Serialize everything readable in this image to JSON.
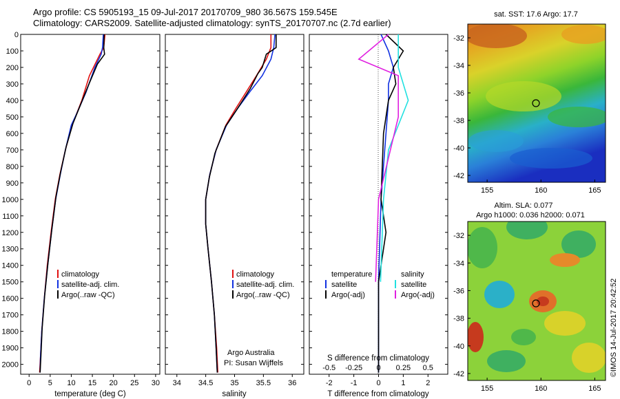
{
  "header": {
    "title_line1": "Argo profile: CS 5905193_15 09-Jul-2017 20170709_980 36.567S 159.545E",
    "title_line2": "Climatology: CARS2009. Satellite-adjusted climatology: synTS_20170707.nc (2.7d earlier)"
  },
  "colors": {
    "climatology": "#e01010",
    "satellite": "#1030e0",
    "argo": "#000000",
    "satellite_salinity": "#20e0e0",
    "argo_salinity_adj": "#e020e0"
  },
  "chart_data": [
    {
      "type": "line",
      "panel": "temperature",
      "xlabel": "temperature (deg C)",
      "ylabel": "",
      "xlim": [
        -2,
        31
      ],
      "ylim": [
        2060,
        0
      ],
      "xticks": [
        "0",
        "5",
        "10",
        "15",
        "20",
        "25",
        "30"
      ],
      "yticks": [
        "0",
        "100",
        "200",
        "300",
        "400",
        "500",
        "600",
        "700",
        "800",
        "900",
        "1000",
        "1100",
        "1200",
        "1300",
        "1400",
        "1500",
        "1600",
        "1700",
        "1800",
        "1900",
        "2000"
      ],
      "legend": [
        "climatology",
        "satellite-adj. clim.",
        "Argo(..raw -QC)"
      ],
      "series": [
        {
          "name": "climatology",
          "values": [
            [
              18.0,
              0
            ],
            [
              17.7,
              80
            ],
            [
              16.8,
              120
            ],
            [
              14.3,
              250
            ],
            [
              12.5,
              400
            ],
            [
              10.2,
              550
            ],
            [
              8.6,
              700
            ],
            [
              7.3,
              850
            ],
            [
              6.2,
              1000
            ],
            [
              5.2,
              1200
            ],
            [
              4.3,
              1400
            ],
            [
              3.6,
              1600
            ],
            [
              3.0,
              1800
            ],
            [
              2.7,
              1950
            ],
            [
              2.5,
              2050
            ]
          ]
        },
        {
          "name": "satellite-adj. clim.",
          "values": [
            [
              17.6,
              0
            ],
            [
              17.4,
              80
            ],
            [
              17.1,
              120
            ],
            [
              15.6,
              200
            ],
            [
              13.5,
              350
            ],
            [
              11.3,
              480
            ],
            [
              10.0,
              550
            ],
            [
              8.6,
              700
            ],
            [
              7.4,
              850
            ],
            [
              6.3,
              1000
            ],
            [
              5.3,
              1200
            ],
            [
              4.4,
              1400
            ],
            [
              3.6,
              1600
            ],
            [
              3.0,
              1800
            ],
            [
              2.7,
              1950
            ],
            [
              2.6,
              2050
            ]
          ]
        },
        {
          "name": "Argo(..raw -QC)",
          "values": [
            [
              17.8,
              0
            ],
            [
              17.7,
              80
            ],
            [
              17.9,
              120
            ],
            [
              16.2,
              180
            ],
            [
              14.2,
              300
            ],
            [
              12.3,
              420
            ],
            [
              10.4,
              540
            ],
            [
              8.8,
              680
            ],
            [
              7.5,
              830
            ],
            [
              6.4,
              980
            ],
            [
              5.4,
              1180
            ],
            [
              4.5,
              1380
            ],
            [
              3.7,
              1580
            ],
            [
              3.1,
              1780
            ],
            [
              2.8,
              1950
            ],
            [
              2.6,
              2050
            ]
          ]
        }
      ]
    },
    {
      "type": "line",
      "panel": "salinity",
      "xlabel": "salinity",
      "xlim": [
        33.8,
        36.2
      ],
      "ylim": [
        2060,
        0
      ],
      "xticks": [
        "34",
        "34.5",
        "35",
        "35.5",
        "36"
      ],
      "legend": [
        "climatology",
        "satellite-adj. clim.",
        "Argo(..raw -QC)"
      ],
      "annotation": [
        "Argo Australia",
        "PI: Susan Wijffels"
      ],
      "series": [
        {
          "name": "climatology",
          "values": [
            [
              35.63,
              0
            ],
            [
              35.63,
              80
            ],
            [
              35.55,
              150
            ],
            [
              35.38,
              250
            ],
            [
              35.2,
              350
            ],
            [
              35.02,
              450
            ],
            [
              34.85,
              550
            ],
            [
              34.68,
              700
            ],
            [
              34.57,
              850
            ],
            [
              34.5,
              1000
            ],
            [
              34.5,
              1150
            ],
            [
              34.54,
              1300
            ],
            [
              34.6,
              1500
            ],
            [
              34.65,
              1700
            ],
            [
              34.69,
              1900
            ],
            [
              34.71,
              2050
            ]
          ]
        },
        {
          "name": "satellite-adj. clim.",
          "values": [
            [
              35.7,
              0
            ],
            [
              35.68,
              80
            ],
            [
              35.63,
              150
            ],
            [
              35.48,
              250
            ],
            [
              35.26,
              350
            ],
            [
              35.05,
              450
            ],
            [
              34.86,
              550
            ],
            [
              34.68,
              700
            ],
            [
              34.57,
              850
            ],
            [
              34.5,
              1000
            ],
            [
              34.5,
              1150
            ],
            [
              34.54,
              1300
            ],
            [
              34.6,
              1500
            ],
            [
              34.65,
              1700
            ],
            [
              34.68,
              1900
            ],
            [
              34.7,
              2050
            ]
          ]
        },
        {
          "name": "Argo(..raw -QC)",
          "values": [
            [
              35.72,
              0
            ],
            [
              35.72,
              80
            ],
            [
              35.55,
              120
            ],
            [
              35.48,
              200
            ],
            [
              35.4,
              240
            ],
            [
              35.27,
              330
            ],
            [
              35.05,
              450
            ],
            [
              34.84,
              560
            ],
            [
              34.66,
              720
            ],
            [
              34.56,
              870
            ],
            [
              34.5,
              1000
            ],
            [
              34.5,
              1150
            ],
            [
              34.54,
              1300
            ],
            [
              34.6,
              1500
            ],
            [
              34.65,
              1700
            ],
            [
              34.68,
              1900
            ],
            [
              34.7,
              2050
            ]
          ]
        }
      ]
    },
    {
      "type": "line",
      "panel": "difference",
      "xlabel": "T difference from climatology",
      "xlabel_top": "S difference from climatology",
      "xlim": [
        -2.8,
        2.8
      ],
      "ylim": [
        2060,
        0
      ],
      "xticks": [
        "-2",
        "-1",
        "0",
        "1",
        "2"
      ],
      "xticks_salinity": [
        "-0.5",
        "-0.25",
        "0",
        "0.25",
        "0.5"
      ],
      "legend_temperature_title": "temperature",
      "legend_salinity_title": "salinity",
      "legend": [
        "satellite",
        "Argo(-adj)",
        "satellite",
        "Argo(-adj)"
      ],
      "series": [
        {
          "name": "temperature satellite",
          "values": [
            [
              0.1,
              0
            ],
            [
              0.4,
              100
            ],
            [
              0.6,
              200
            ],
            [
              0.4,
              300
            ],
            [
              0.4,
              400
            ],
            [
              0.3,
              600
            ],
            [
              0.1,
              1000
            ],
            [
              0,
              1500
            ],
            [
              0,
              2050
            ]
          ]
        },
        {
          "name": "temperature Argo(-adj)",
          "values": [
            [
              0.3,
              0
            ],
            [
              1.0,
              100
            ],
            [
              0.6,
              200
            ],
            [
              0.7,
              300
            ],
            [
              0.4,
              400
            ],
            [
              0.2,
              600
            ],
            [
              0.1,
              1000
            ],
            [
              0.3,
              1200
            ],
            [
              0,
              1500
            ],
            [
              0,
              2050
            ]
          ]
        },
        {
          "name": "salinity satellite",
          "values": [
            [
              0.2,
              0
            ],
            [
              0.2,
              200
            ],
            [
              0.3,
              400
            ],
            [
              0.1,
              700
            ],
            [
              0.05,
              1000
            ],
            [
              0.02,
              1500
            ]
          ]
        },
        {
          "name": "salinity Argo(-adj)",
          "values": [
            [
              0.1,
              0
            ],
            [
              -0.2,
              150
            ],
            [
              0.2,
              250
            ],
            [
              0.2,
              500
            ],
            [
              0.0,
              1000
            ],
            [
              -0.03,
              1500
            ]
          ]
        }
      ]
    }
  ],
  "maps": {
    "sst_title": "sat. SST: 17.6  Argo: 17.7",
    "sla_title_line1": "Altim. SLA: 0.077",
    "sla_title_line2": "Argo h1000: 0.036 h2000: 0.071",
    "lat_ticks": [
      "-32",
      "-34",
      "-36",
      "-38",
      "-40",
      "-42"
    ],
    "lon_ticks": [
      "155",
      "160",
      "165"
    ],
    "float_position": {
      "lon": 159.545,
      "lat": -36.567
    }
  },
  "credit": "©IMOS 14-Jul-2017 20:42:52"
}
